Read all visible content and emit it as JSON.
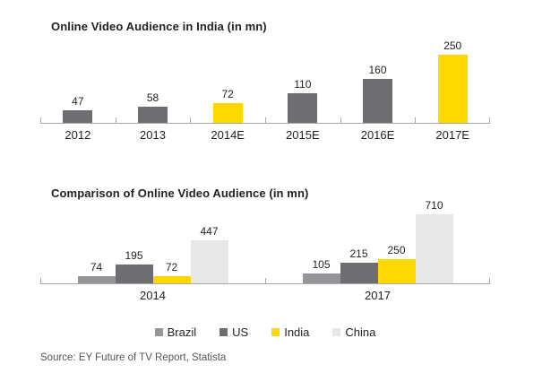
{
  "source": "Source: EY Future of TV Report, Statista",
  "colors": {
    "dark_gray": "#6d6e71",
    "medium_gray": "#939598",
    "light_gray": "#e6e7e8",
    "brand_yellow": "#ffd800",
    "axis": "#a7a8aa"
  },
  "chart_data": [
    {
      "type": "bar",
      "title": "Online Video Audience in India (in mn)",
      "categories": [
        "2012",
        "2013",
        "2014E",
        "2015E",
        "2016E",
        "2017E"
      ],
      "values": [
        47,
        58,
        72,
        110,
        160,
        250
      ],
      "bar_colors": [
        "#6d6e71",
        "#6d6e71",
        "#ffd800",
        "#6d6e71",
        "#6d6e71",
        "#ffd800"
      ],
      "xlabel": "",
      "ylabel": "",
      "ylim": [
        0,
        250
      ],
      "grid": false,
      "legend_position": "none",
      "value_labels": true
    },
    {
      "type": "bar",
      "title": "Comparison of Online Video Audience (in mn)",
      "categories": [
        "2014",
        "2017"
      ],
      "series": [
        {
          "name": "Brazil",
          "color": "#939598",
          "values": [
            74,
            105
          ]
        },
        {
          "name": "US",
          "color": "#6d6e71",
          "values": [
            195,
            215
          ]
        },
        {
          "name": "India",
          "color": "#ffd800",
          "values": [
            72,
            250
          ]
        },
        {
          "name": "China",
          "color": "#e6e7e8",
          "values": [
            447,
            710
          ]
        }
      ],
      "xlabel": "",
      "ylabel": "",
      "ylim": [
        0,
        710
      ],
      "grid": false,
      "legend_position": "bottom",
      "value_labels": true
    }
  ]
}
